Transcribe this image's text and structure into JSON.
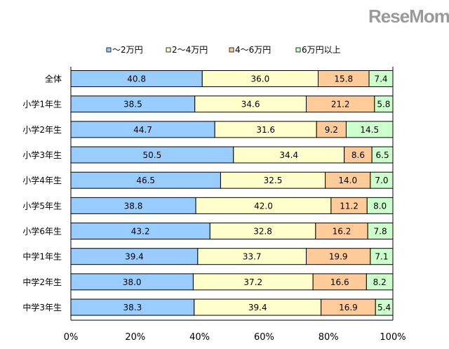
{
  "chart_data": {
    "type": "bar",
    "orientation": "horizontal",
    "stacked": true,
    "categories": [
      "全体",
      "小学1年生",
      "小学2年生",
      "小学3年生",
      "小学4年生",
      "小学5年生",
      "小学6年生",
      "中学1年生",
      "中学2年生",
      "中学3年生"
    ],
    "series": [
      {
        "name": "～2万円",
        "color": "#99ccff",
        "values": [
          40.8,
          38.5,
          44.7,
          50.5,
          46.5,
          38.8,
          43.2,
          39.4,
          38.0,
          38.3
        ]
      },
      {
        "name": "2～4万円",
        "color": "#ffffcc",
        "values": [
          36.0,
          34.6,
          31.6,
          34.4,
          32.5,
          42.0,
          32.8,
          33.7,
          37.2,
          39.4
        ]
      },
      {
        "name": "4～6万円",
        "color": "#ffcc99",
        "values": [
          15.8,
          21.2,
          9.2,
          8.6,
          14.0,
          11.2,
          16.2,
          19.9,
          16.6,
          16.9
        ]
      },
      {
        "name": "6万円以上",
        "color": "#ccffcc",
        "values": [
          7.4,
          5.8,
          14.5,
          6.5,
          7.0,
          8.0,
          7.8,
          7.1,
          8.2,
          5.4
        ]
      }
    ],
    "xlim": [
      0,
      100
    ],
    "xticks": [
      "0%",
      "20%",
      "40%",
      "60%",
      "80%",
      "100%"
    ],
    "legend": "top",
    "grid": false
  },
  "watermark": "ReseMom"
}
